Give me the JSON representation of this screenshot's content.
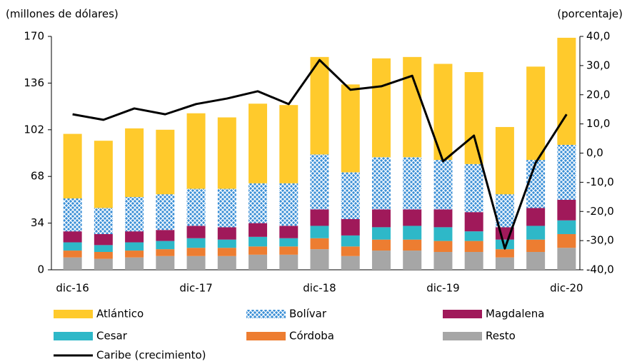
{
  "chart_data": {
    "type": "bar",
    "y_label": "(millones de dólares)",
    "y2_label": "(porcentaje)",
    "categories": [
      "dic-16",
      null,
      null,
      null,
      "dic-17",
      null,
      null,
      null,
      "dic-18",
      null,
      null,
      null,
      "dic-19",
      null,
      null,
      null,
      "dic-20"
    ],
    "ylim": [
      0,
      170
    ],
    "yticks": [
      0,
      34,
      68,
      102,
      136,
      170
    ],
    "y2lim": [
      -40,
      40
    ],
    "y2ticks": [
      {
        "value": -40,
        "label": "-40,0"
      },
      {
        "value": -30,
        "label": "-30,0"
      },
      {
        "value": -20,
        "label": "-20,0"
      },
      {
        "value": -10,
        "label": "-10,0"
      },
      {
        "value": 0,
        "label": "0,0"
      },
      {
        "value": 10,
        "label": "10,0"
      },
      {
        "value": 20,
        "label": "20,0"
      },
      {
        "value": 30,
        "label": "30,0"
      },
      {
        "value": 40,
        "label": "40,0"
      }
    ],
    "series": [
      {
        "name": "Resto",
        "color": "#a6a6a6",
        "values": [
          9,
          8,
          9,
          10,
          10,
          10,
          11,
          11,
          15,
          10,
          14,
          14,
          13,
          13,
          9,
          13,
          16
        ]
      },
      {
        "name": "Córdoba",
        "color": "#ed7d31",
        "values": [
          5,
          5,
          5,
          5,
          6,
          6,
          6,
          6,
          8,
          7,
          8,
          8,
          8,
          8,
          6,
          9,
          10
        ]
      },
      {
        "name": "Cesar",
        "color": "#2eb8c8",
        "values": [
          6,
          5,
          6,
          6,
          7,
          6,
          7,
          6,
          9,
          8,
          9,
          10,
          10,
          7,
          7,
          10,
          10
        ]
      },
      {
        "name": "Magdalena",
        "color": "#a0195a",
        "values": [
          8,
          8,
          8,
          8,
          9,
          9,
          10,
          9,
          12,
          12,
          13,
          12,
          13,
          14,
          9,
          13,
          15
        ]
      },
      {
        "name": "Bolívar",
        "color": "#3a8fd6",
        "values": [
          24,
          19,
          25,
          26,
          27,
          28,
          29,
          31,
          40,
          34,
          38,
          38,
          36,
          35,
          24,
          35,
          40
        ]
      },
      {
        "name": "Atlántico",
        "color": "#ffca2c",
        "values": [
          47,
          49,
          50,
          47,
          55,
          52,
          58,
          57,
          71,
          64,
          72,
          73,
          70,
          67,
          49,
          68,
          78
        ]
      },
      {
        "name": "Caribe (crecimiento)",
        "color": "#000000",
        "type": "line",
        "axis": "y2",
        "values": [
          13.3,
          11.4,
          15.3,
          13.3,
          16.8,
          18.7,
          21.2,
          16.8,
          31.9,
          21.7,
          22.9,
          26.5,
          -2.8,
          6.0,
          -32.7,
          -3.3,
          13.3
        ]
      }
    ]
  }
}
